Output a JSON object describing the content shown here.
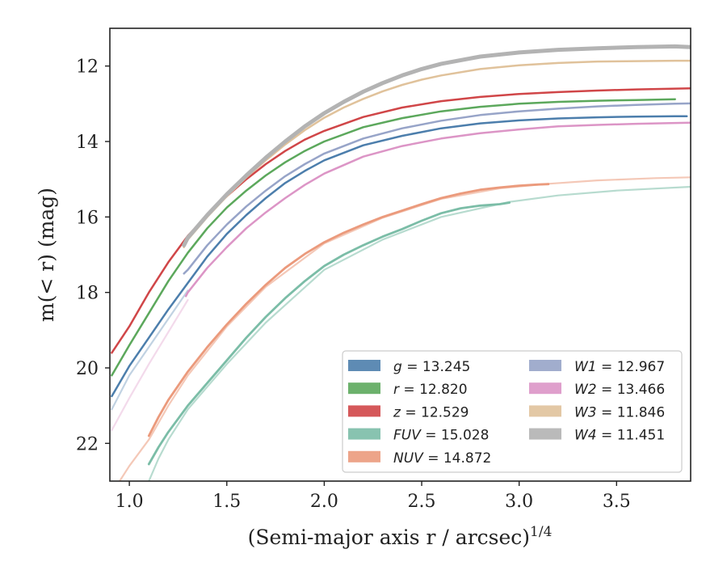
{
  "chart_data": {
    "type": "line",
    "xlabel": "(Semi-major axis r / arcsec)",
    "xlabel_sup": "1/4",
    "ylabel": "m(< r) (mag)",
    "xlim": [
      0.9,
      3.88
    ],
    "ylim": [
      23.0,
      11.0
    ],
    "y_inverted": true,
    "x_ticks": [
      1.0,
      1.5,
      2.0,
      2.5,
      3.0,
      3.5
    ],
    "x_tick_labels": [
      "1.0",
      "1.5",
      "2.0",
      "2.5",
      "3.0",
      "3.5"
    ],
    "y_ticks": [
      12,
      14,
      16,
      18,
      20,
      22
    ],
    "y_tick_labels": [
      "12",
      "14",
      "16",
      "18",
      "20",
      "22"
    ],
    "grid": false,
    "legend_position": "lower-right",
    "legend_columns": 2,
    "series": [
      {
        "name": "g = 13.245",
        "band": "g",
        "value": "13.245",
        "color": "#4c7eac",
        "width": 2.5,
        "opacity": 1.0,
        "legend_index": 0,
        "x": [
          0.91,
          1.0,
          1.1,
          1.2,
          1.3,
          1.4,
          1.5,
          1.6,
          1.7,
          1.8,
          1.9,
          2.0,
          2.2,
          2.4,
          2.6,
          2.8,
          3.0,
          3.2,
          3.4,
          3.6,
          3.8,
          3.86
        ],
        "y": [
          20.75,
          19.95,
          19.2,
          18.45,
          17.75,
          17.05,
          16.45,
          15.95,
          15.5,
          15.1,
          14.78,
          14.5,
          14.1,
          13.85,
          13.65,
          13.52,
          13.44,
          13.39,
          13.36,
          13.34,
          13.33,
          13.33
        ],
        "faint": {
          "x": [
            0.91,
            1.0,
            1.1,
            1.2,
            1.3
          ],
          "y": [
            21.1,
            20.2,
            19.45,
            18.7,
            17.95
          ],
          "opacity": 0.35
        }
      },
      {
        "name": "r = 12.820",
        "band": "r",
        "value": "12.820",
        "color": "#5ca85c",
        "width": 2.5,
        "opacity": 1.0,
        "legend_index": 1,
        "x": [
          0.91,
          1.0,
          1.1,
          1.2,
          1.3,
          1.4,
          1.5,
          1.6,
          1.7,
          1.8,
          1.9,
          2.0,
          2.2,
          2.4,
          2.6,
          2.8,
          3.0,
          3.2,
          3.4,
          3.6,
          3.8
        ],
        "y": [
          20.2,
          19.4,
          18.55,
          17.7,
          16.95,
          16.3,
          15.75,
          15.3,
          14.9,
          14.55,
          14.25,
          14.0,
          13.62,
          13.38,
          13.2,
          13.08,
          13.0,
          12.95,
          12.92,
          12.9,
          12.88
        ]
      },
      {
        "name": "z = 12.529",
        "band": "z",
        "value": "12.529",
        "color": "#d04648",
        "width": 2.5,
        "opacity": 1.0,
        "legend_index": 2,
        "x": [
          0.91,
          1.0,
          1.1,
          1.2,
          1.3,
          1.4,
          1.5,
          1.6,
          1.7,
          1.8,
          1.9,
          2.0,
          2.2,
          2.4,
          2.6,
          2.8,
          3.0,
          3.2,
          3.4,
          3.6,
          3.88
        ],
        "y": [
          19.6,
          18.9,
          18.0,
          17.2,
          16.5,
          15.95,
          15.45,
          15.0,
          14.6,
          14.25,
          13.95,
          13.72,
          13.35,
          13.1,
          12.93,
          12.82,
          12.74,
          12.69,
          12.65,
          12.62,
          12.59
        ]
      },
      {
        "name": "FUV = 15.028",
        "band": "FUV",
        "value": "15.028",
        "color": "#7bbda7",
        "width": 2.8,
        "opacity": 1.0,
        "legend_index": 3,
        "x": [
          1.1,
          1.15,
          1.2,
          1.3,
          1.4,
          1.5,
          1.6,
          1.7,
          1.8,
          1.9,
          2.0,
          2.1,
          2.2,
          2.3,
          2.4,
          2.5,
          2.6,
          2.7,
          2.8,
          2.9,
          2.95
        ],
        "y": [
          22.55,
          22.1,
          21.7,
          21.0,
          20.4,
          19.8,
          19.2,
          18.65,
          18.15,
          17.7,
          17.3,
          17.0,
          16.75,
          16.52,
          16.32,
          16.1,
          15.9,
          15.77,
          15.7,
          15.66,
          15.62
        ],
        "faint": {
          "x": [
            1.1,
            1.15,
            1.2,
            1.3,
            1.5,
            1.7,
            2.0,
            2.3,
            2.6,
            2.95,
            3.2,
            3.5,
            3.88
          ],
          "y": [
            23.0,
            22.4,
            21.9,
            21.1,
            19.9,
            18.8,
            17.4,
            16.6,
            16.0,
            15.6,
            15.43,
            15.3,
            15.2
          ],
          "opacity": 0.55
        }
      },
      {
        "name": "NUV = 14.872",
        "band": "NUV",
        "value": "14.872",
        "color": "#eb9a7c",
        "width": 2.8,
        "opacity": 1.0,
        "legend_index": 4,
        "x": [
          1.1,
          1.15,
          1.2,
          1.3,
          1.4,
          1.5,
          1.6,
          1.7,
          1.8,
          1.9,
          2.0,
          2.1,
          2.2,
          2.3,
          2.4,
          2.5,
          2.6,
          2.7,
          2.8,
          2.9,
          3.0,
          3.1,
          3.15
        ],
        "y": [
          21.8,
          21.3,
          20.85,
          20.1,
          19.45,
          18.85,
          18.3,
          17.8,
          17.35,
          16.98,
          16.67,
          16.42,
          16.2,
          16.0,
          15.83,
          15.66,
          15.5,
          15.38,
          15.28,
          15.22,
          15.17,
          15.14,
          15.13
        ],
        "faint": {
          "x": [
            0.95,
            1.0,
            1.1,
            1.2,
            1.3,
            1.5,
            1.7,
            2.0,
            2.3,
            2.6,
            2.9,
            3.15,
            3.4,
            3.7,
            3.88
          ],
          "y": [
            23.0,
            22.6,
            21.9,
            21.0,
            20.2,
            18.9,
            17.85,
            16.7,
            16.02,
            15.52,
            15.24,
            15.12,
            15.03,
            14.97,
            14.95
          ],
          "opacity": 0.55
        }
      },
      {
        "name": "W1 = 12.967",
        "band": "W1",
        "value": "12.967",
        "color": "#97a4c8",
        "width": 2.5,
        "opacity": 1.0,
        "legend_index": 5,
        "x": [
          1.28,
          1.3,
          1.4,
          1.5,
          1.6,
          1.7,
          1.8,
          1.9,
          2.0,
          2.2,
          2.4,
          2.6,
          2.8,
          3.0,
          3.2,
          3.4,
          3.6,
          3.8,
          3.88
        ],
        "y": [
          17.5,
          17.4,
          16.75,
          16.2,
          15.72,
          15.3,
          14.92,
          14.6,
          14.32,
          13.92,
          13.65,
          13.45,
          13.3,
          13.2,
          13.13,
          13.07,
          13.03,
          13.0,
          12.99
        ]
      },
      {
        "name": "W2 = 13.466",
        "band": "W2",
        "value": "13.466",
        "color": "#dc95c6",
        "width": 2.5,
        "opacity": 1.0,
        "legend_index": 6,
        "x": [
          1.29,
          1.3,
          1.4,
          1.5,
          1.6,
          1.7,
          1.8,
          1.9,
          2.0,
          2.2,
          2.4,
          2.6,
          2.8,
          3.0,
          3.2,
          3.4,
          3.6,
          3.8,
          3.88
        ],
        "y": [
          18.1,
          18.0,
          17.35,
          16.8,
          16.3,
          15.88,
          15.5,
          15.15,
          14.85,
          14.4,
          14.12,
          13.92,
          13.78,
          13.68,
          13.6,
          13.56,
          13.53,
          13.51,
          13.5
        ],
        "faint": {
          "x": [
            0.91,
            1.0,
            1.1,
            1.2,
            1.3
          ],
          "y": [
            21.65,
            20.8,
            19.9,
            19.05,
            18.2
          ],
          "opacity": 0.35
        }
      },
      {
        "name": "W3 = 11.846",
        "band": "W3",
        "value": "11.846",
        "color": "#e0c29b",
        "width": 2.5,
        "opacity": 1.0,
        "legend_index": 7,
        "x": [
          1.28,
          1.3,
          1.4,
          1.5,
          1.6,
          1.7,
          1.8,
          1.9,
          2.0,
          2.1,
          2.2,
          2.3,
          2.4,
          2.5,
          2.6,
          2.8,
          3.0,
          3.2,
          3.4,
          3.6,
          3.8,
          3.88
        ],
        "y": [
          16.8,
          16.6,
          16.0,
          15.45,
          14.95,
          14.5,
          14.08,
          13.7,
          13.37,
          13.1,
          12.87,
          12.67,
          12.5,
          12.36,
          12.25,
          12.08,
          11.98,
          11.92,
          11.88,
          11.87,
          11.86,
          11.86
        ]
      },
      {
        "name": "W4 = 11.451",
        "band": "W4",
        "value": "11.451",
        "color": "#b3b3b3",
        "width": 5.0,
        "opacity": 1.0,
        "legend_index": 8,
        "x": [
          1.28,
          1.3,
          1.4,
          1.5,
          1.6,
          1.7,
          1.8,
          1.9,
          2.0,
          2.1,
          2.2,
          2.3,
          2.4,
          2.5,
          2.6,
          2.8,
          3.0,
          3.2,
          3.4,
          3.6,
          3.8,
          3.88
        ],
        "y": [
          16.75,
          16.55,
          15.95,
          15.4,
          14.9,
          14.43,
          14.0,
          13.6,
          13.25,
          12.95,
          12.68,
          12.45,
          12.25,
          12.08,
          11.94,
          11.75,
          11.64,
          11.57,
          11.53,
          11.5,
          11.48,
          11.5
        ]
      }
    ]
  }
}
